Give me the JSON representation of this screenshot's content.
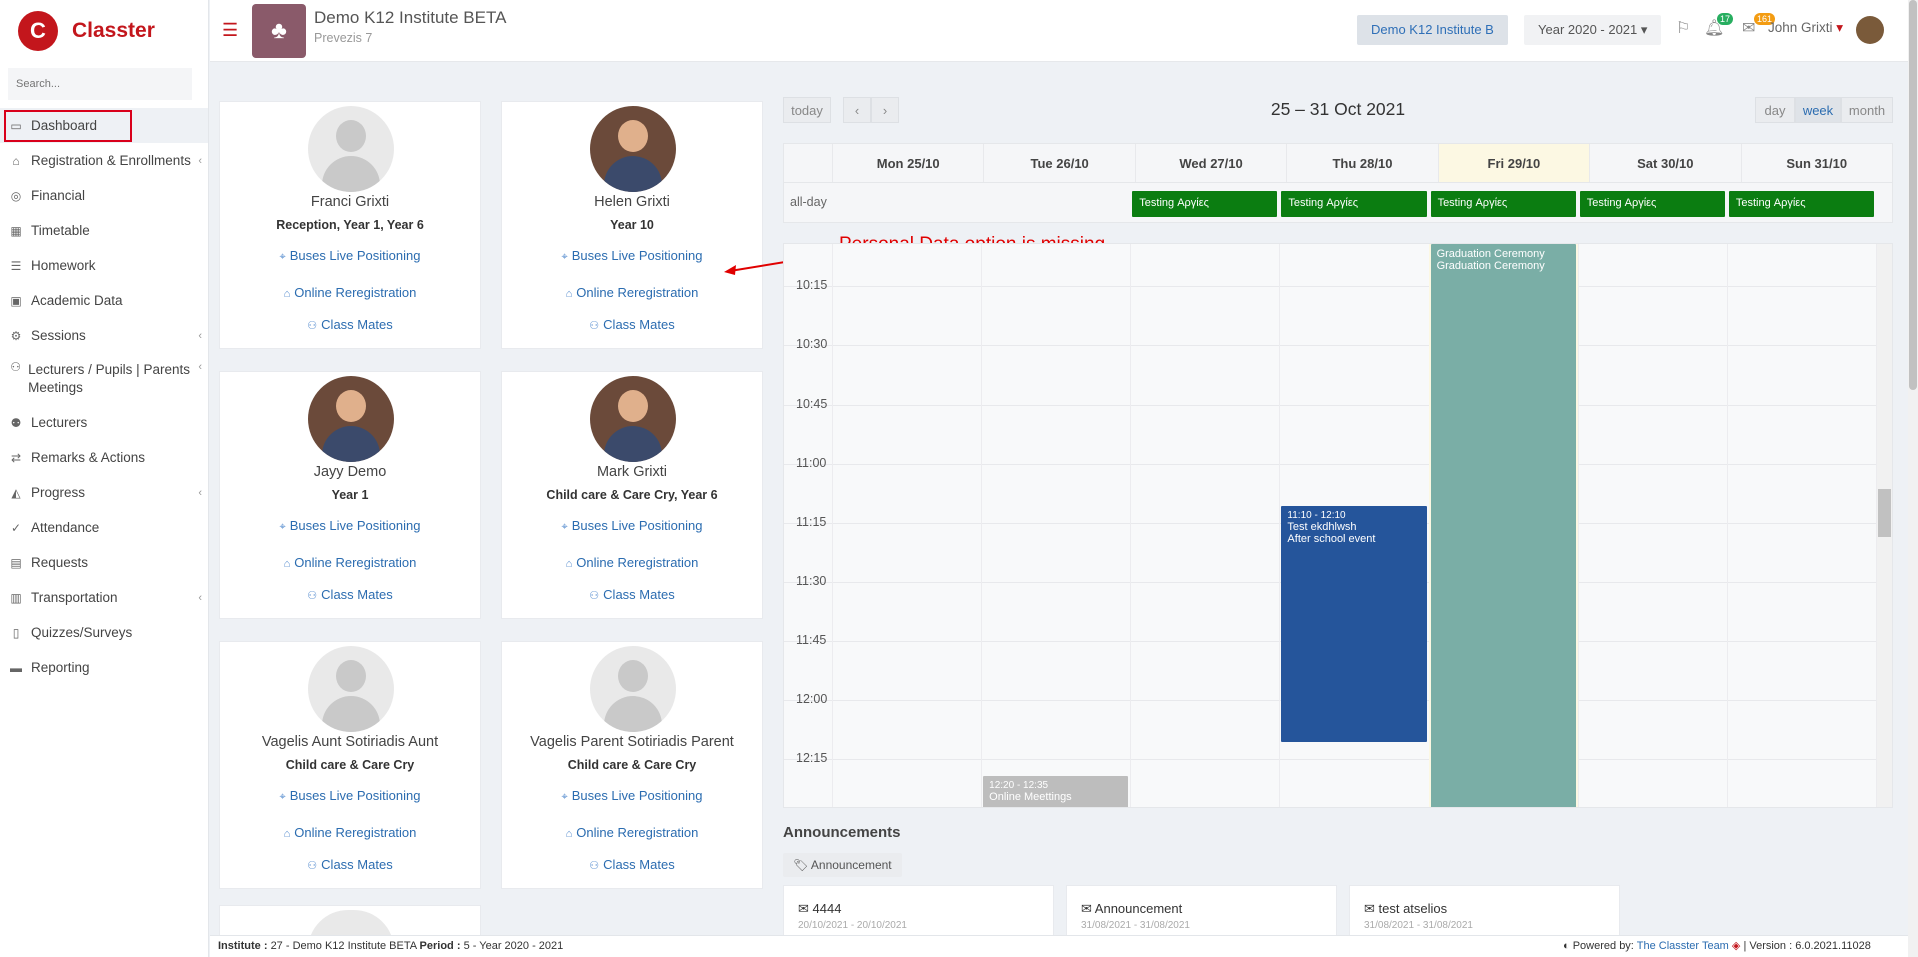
{
  "app": {
    "brand": "Classter",
    "search_placeholder": "Search..."
  },
  "sidebar": {
    "items": [
      {
        "label": "Dashboard",
        "icon": "laptop-icon",
        "active": true
      },
      {
        "label": "Registration & Enrollments",
        "icon": "institution-icon",
        "arrow": "‹"
      },
      {
        "label": "Financial",
        "icon": "coins-icon"
      },
      {
        "label": "Timetable",
        "icon": "calendar-icon"
      },
      {
        "label": "Homework",
        "icon": "list-icon"
      },
      {
        "label": "Academic Data",
        "icon": "id-card-icon"
      },
      {
        "label": "Sessions",
        "icon": "cogs-icon",
        "arrow": "‹"
      },
      {
        "label": "Lecturers / Pupils | Parents Meetings",
        "icon": "users-icon",
        "arrow": "‹"
      },
      {
        "label": "Lecturers",
        "icon": "user-pair-icon"
      },
      {
        "label": "Remarks & Actions",
        "icon": "shuffle-icon"
      },
      {
        "label": "Progress",
        "icon": "graduation-cap-icon",
        "arrow": "‹"
      },
      {
        "label": "Attendance",
        "icon": "user-check-icon"
      },
      {
        "label": "Requests",
        "icon": "document-icon"
      },
      {
        "label": "Transportation",
        "icon": "bus-icon",
        "arrow": "‹"
      },
      {
        "label": "Quizzes/Surveys",
        "icon": "book-icon"
      },
      {
        "label": "Reporting",
        "icon": "printer-icon"
      }
    ]
  },
  "topbar": {
    "institute_name": "Demo K12 Institute BETA",
    "institute_address": "Prevezis 7",
    "institute_selector": "Demo K12 Institute B",
    "year_selector": "Year 2020 - 2021",
    "notifications_count": "17",
    "messages_count": "161",
    "user_name": "John Grixti"
  },
  "students": [
    {
      "name": "Franci Grixti",
      "classes": "Reception, Year 1, Year 6",
      "photo": false
    },
    {
      "name": "Helen Grixti",
      "classes": "Year 10",
      "photo": true
    },
    {
      "name": "Jayy Demo",
      "classes": "Year 1",
      "photo": true
    },
    {
      "name": "Mark Grixti",
      "classes": "Child care & Care Cry, Year 6",
      "photo": true
    },
    {
      "name": "Vagelis Aunt Sotiriadis Aunt",
      "classes": "Child care & Care Cry",
      "photo": false
    },
    {
      "name": "Vagelis Parent Sotiriadis Parent",
      "classes": "Child care & Care Cry",
      "photo": false
    }
  ],
  "card_links": {
    "buses": "Buses Live Positioning",
    "rereg": "Online Reregistration",
    "mates": "Class Mates"
  },
  "calendar": {
    "today": "today",
    "prev": "‹",
    "next": "›",
    "range_title": "25 – 31 Oct 2021",
    "views": [
      "day",
      "week",
      "month"
    ],
    "active_view": "week",
    "days": [
      "Mon 25/10",
      "Tue 26/10",
      "Wed 27/10",
      "Thu 28/10",
      "Fri 29/10",
      "Sat 30/10",
      "Sun 31/10"
    ],
    "allday_label": "all-day",
    "allday_event": "Testing Αργίες",
    "times": [
      "10:15",
      "10:30",
      "10:45",
      "11:00",
      "11:15",
      "11:30",
      "11:45",
      "12:00",
      "12:15"
    ],
    "events": [
      {
        "time": "",
        "title": "Graduation Ceremony",
        "sub": "Graduation Ceremony",
        "color": "#7aaea6"
      },
      {
        "time": "11:10 - 12:10",
        "title": "Test ekdhlwsh",
        "sub": "After school event",
        "color": "#25559b"
      },
      {
        "time": "12:20 - 12:35",
        "title": "Online Meettings",
        "sub": "",
        "color": "#bdbdbd"
      }
    ]
  },
  "annotation": {
    "text": "Personal Data option is missing",
    "color": "#e00000"
  },
  "announcements": {
    "heading": "Announcements",
    "tag": "Announcement",
    "cards": [
      {
        "title": "4444",
        "date": "20/10/2021 - 20/10/2021"
      },
      {
        "title": "Announcement",
        "date": "31/08/2021 - 31/08/2021"
      },
      {
        "title": "test atselios",
        "date": "31/08/2021 - 31/08/2021"
      }
    ]
  },
  "footer": {
    "institute_label": "Institute :",
    "institute_value": "27 - Demo K12 Institute BETA",
    "period_label": "Period :",
    "period_value": "5 - Year 2020 - 2021",
    "powered_by": "Powered by:",
    "team": "The Classter Team",
    "version": "| Version : 6.0.2021.11028"
  },
  "colors": {
    "brand": "#c3161c",
    "link": "#2b6cb0",
    "allday_event": "#0b7d11",
    "highlight": "#d9001b"
  }
}
